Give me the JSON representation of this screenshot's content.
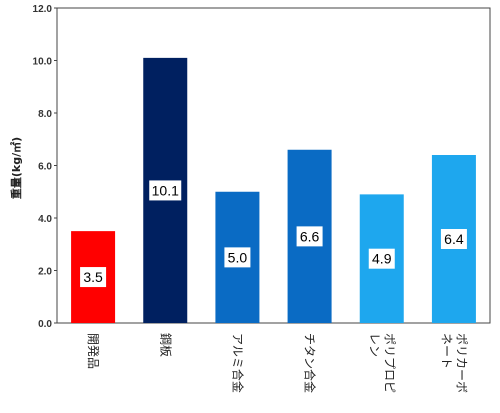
{
  "chart_data": {
    "type": "bar",
    "categories": [
      "開発品",
      "鋼板",
      "アルミ合金",
      "チタン合金",
      "ポリプロピレン",
      "ポリカーボネート"
    ],
    "category_lines": [
      [
        "開発品"
      ],
      [
        "鋼板"
      ],
      [
        "アルミ合金"
      ],
      [
        "チタン合金"
      ],
      [
        "ポリプロピ",
        "レン"
      ],
      [
        "ポリカーボ",
        "ネート"
      ]
    ],
    "values": [
      3.5,
      10.1,
      5.0,
      6.6,
      4.9,
      6.4
    ],
    "value_labels": [
      "3.5",
      "10.1",
      "5.0",
      "6.6",
      "4.9",
      "6.4"
    ],
    "bar_colors": [
      "#ff0000",
      "#002060",
      "#0a6bc4",
      "#0a6bc4",
      "#1ea7ee",
      "#1ea7ee"
    ],
    "ylabel": "重量(kg/㎡)",
    "yticks": [
      "0.0",
      "2.0",
      "4.0",
      "6.0",
      "8.0",
      "10.0",
      "12.0"
    ],
    "ylim": [
      0,
      12
    ],
    "grid": false,
    "legend": "none"
  }
}
